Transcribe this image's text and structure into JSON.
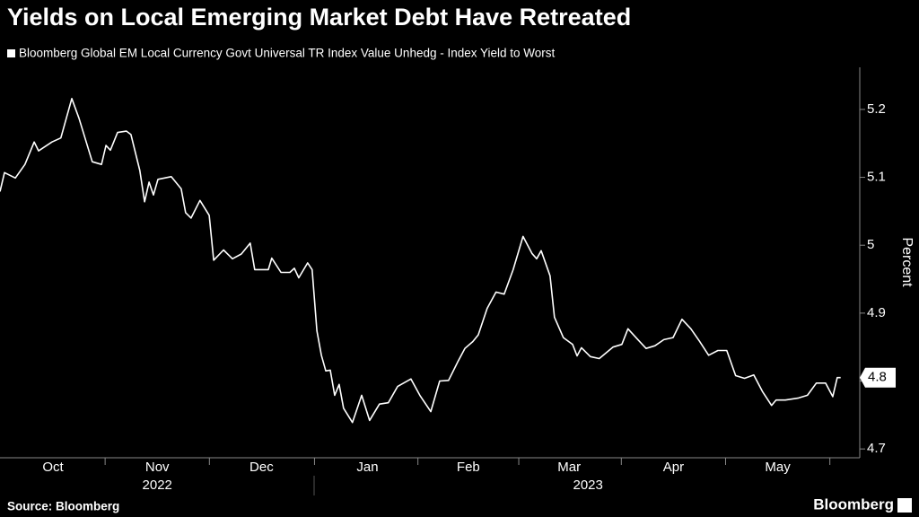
{
  "chart_data": {
    "type": "line",
    "title": "Yields on Local Emerging Market Debt Have Retreated",
    "subtitle": "Bloomberg Global EM Local Currency Govt Universal TR Index Value Unhedg - Index Yield to Worst",
    "ylabel": "Percent",
    "source": "Source: Bloomberg",
    "brand": "Bloomberg",
    "color": "#ffffff",
    "last_value_label": "4.8",
    "xlim": [
      0,
      251.5
    ],
    "ylim": [
      4.687,
      5.262
    ],
    "yticks": [
      4.7,
      4.8,
      4.9,
      5.0,
      5.1,
      5.2
    ],
    "xticks": [
      {
        "value": 15.5,
        "label": "Oct"
      },
      {
        "value": 46,
        "label": "Nov"
      },
      {
        "value": 76.5,
        "label": "Dec"
      },
      {
        "value": 107.5,
        "label": "Jan"
      },
      {
        "value": 137,
        "label": "Feb"
      },
      {
        "value": 166.5,
        "label": "Mar"
      },
      {
        "value": 197,
        "label": "Apr"
      },
      {
        "value": 227.5,
        "label": "May"
      }
    ],
    "xgroups": [
      {
        "value": 46,
        "label": "2022"
      },
      {
        "value": 172,
        "label": "2023"
      }
    ],
    "x": [
      0,
      1.3,
      4.5,
      7.3,
      10,
      11.3,
      15.2,
      17.8,
      21,
      23.1,
      27,
      29.7,
      31,
      32.3,
      34.4,
      37,
      38.3,
      40.9,
      42.3,
      43.6,
      44.9,
      46.2,
      50.1,
      53,
      54.3,
      55.9,
      58.5,
      61.2,
      62.5,
      65.4,
      68,
      70.6,
      73.2,
      74.5,
      78.5,
      79.5,
      82.2,
      84.8,
      86.1,
      87.4,
      90,
      91.3,
      92.7,
      94,
      95.3,
      96.6,
      97.9,
      99.2,
      100.5,
      103.1,
      105.8,
      108.1,
      111,
      113.6,
      116.3,
      120.2,
      122.8,
      126,
      128.6,
      131.2,
      133.9,
      136,
      138.3,
      139.9,
      142.5,
      145.1,
      147.5,
      150.1,
      153,
      155.6,
      157,
      158.3,
      160.9,
      162.2,
      164.8,
      167.5,
      168.8,
      170.1,
      172.7,
      175.3,
      179.3,
      181.9,
      183.7,
      186.4,
      189,
      191.6,
      194.2,
      196.9,
      199.5,
      202.1,
      204.7,
      207.3,
      210,
      212.6,
      215.2,
      217.8,
      220.5,
      223.1,
      225.7,
      227,
      229.7,
      233.6,
      236.2,
      238.8,
      241.5,
      243.6,
      244.9,
      245.9
    ],
    "values": [
      5.079,
      5.107,
      5.099,
      5.119,
      5.152,
      5.139,
      5.152,
      5.158,
      5.216,
      5.187,
      5.123,
      5.119,
      5.147,
      5.14,
      5.166,
      5.168,
      5.163,
      5.11,
      5.064,
      5.093,
      5.074,
      5.097,
      5.101,
      5.083,
      5.048,
      5.04,
      5.066,
      5.044,
      4.978,
      4.993,
      4.98,
      4.987,
      5.003,
      4.964,
      4.964,
      4.981,
      4.96,
      4.96,
      4.966,
      4.952,
      4.974,
      4.964,
      4.874,
      4.838,
      4.815,
      4.816,
      4.779,
      4.795,
      4.76,
      4.739,
      4.779,
      4.742,
      4.766,
      4.768,
      4.792,
      4.803,
      4.779,
      4.755,
      4.8,
      4.801,
      4.828,
      4.848,
      4.858,
      4.868,
      4.907,
      4.931,
      4.928,
      4.964,
      5.013,
      4.988,
      4.98,
      4.992,
      4.955,
      4.894,
      4.864,
      4.854,
      4.837,
      4.849,
      4.836,
      4.833,
      4.85,
      4.854,
      4.877,
      4.862,
      4.848,
      4.852,
      4.861,
      4.864,
      4.891,
      4.877,
      4.858,
      4.838,
      4.845,
      4.845,
      4.808,
      4.804,
      4.809,
      4.784,
      4.764,
      4.772,
      4.772,
      4.775,
      4.779,
      4.797,
      4.797,
      4.777,
      4.805,
      4.805
    ]
  }
}
